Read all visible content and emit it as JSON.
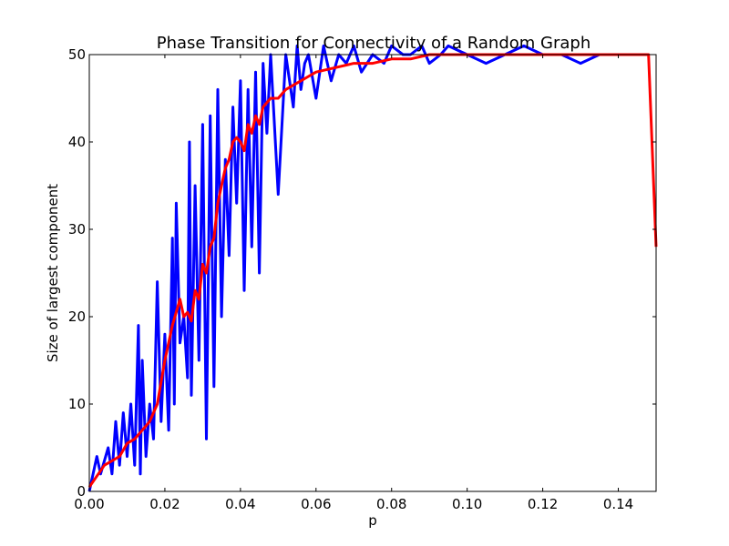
{
  "chart_data": {
    "type": "line",
    "title": "Phase Transition for Connectivity of a Random Graph",
    "xlabel": "p",
    "ylabel": "Size of largest component",
    "xlim": [
      0.0,
      0.15
    ],
    "ylim": [
      0,
      50
    ],
    "xticks": [
      "0.00",
      "0.02",
      "0.04",
      "0.06",
      "0.08",
      "0.10",
      "0.12",
      "0.14"
    ],
    "yticks": [
      "0",
      "10",
      "20",
      "30",
      "40",
      "50"
    ],
    "grid": false,
    "legend": "none",
    "series": [
      {
        "color": "#0000ff",
        "x": [
          0.0,
          0.002,
          0.003,
          0.005,
          0.006,
          0.007,
          0.008,
          0.009,
          0.01,
          0.011,
          0.012,
          0.013,
          0.0135,
          0.014,
          0.015,
          0.016,
          0.017,
          0.018,
          0.019,
          0.02,
          0.021,
          0.022,
          0.0225,
          0.023,
          0.024,
          0.025,
          0.026,
          0.0265,
          0.027,
          0.028,
          0.029,
          0.03,
          0.031,
          0.032,
          0.033,
          0.034,
          0.035,
          0.036,
          0.037,
          0.038,
          0.039,
          0.04,
          0.041,
          0.042,
          0.043,
          0.044,
          0.045,
          0.046,
          0.047,
          0.048,
          0.05,
          0.052,
          0.054,
          0.055,
          0.056,
          0.057,
          0.058,
          0.06,
          0.062,
          0.064,
          0.066,
          0.068,
          0.07,
          0.072,
          0.075,
          0.078,
          0.08,
          0.083,
          0.085,
          0.088,
          0.09,
          0.093,
          0.095,
          0.1,
          0.105,
          0.11,
          0.115,
          0.12,
          0.125,
          0.13,
          0.135,
          0.14,
          0.145,
          0.148
        ],
        "y": [
          0,
          4,
          2,
          5,
          2,
          8,
          3,
          9,
          4,
          10,
          3,
          19,
          2,
          15,
          4,
          10,
          6,
          24,
          8,
          18,
          7,
          29,
          10,
          33,
          17,
          20,
          13,
          40,
          11,
          35,
          15,
          42,
          6,
          43,
          12,
          46,
          20,
          38,
          27,
          44,
          33,
          47,
          23,
          46,
          28,
          48,
          25,
          49,
          41,
          50,
          34,
          50,
          44,
          51,
          46,
          49,
          50,
          45,
          51,
          47,
          50,
          49,
          51,
          48,
          50,
          49,
          51,
          50,
          50,
          51,
          49,
          50,
          51,
          50,
          49,
          50,
          51,
          50,
          50,
          49,
          50,
          50,
          50,
          50
        ]
      },
      {
        "color": "#ff0000",
        "x": [
          0.0,
          0.004,
          0.008,
          0.01,
          0.012,
          0.014,
          0.016,
          0.018,
          0.02,
          0.022,
          0.024,
          0.025,
          0.026,
          0.027,
          0.028,
          0.029,
          0.03,
          0.031,
          0.032,
          0.033,
          0.034,
          0.035,
          0.036,
          0.037,
          0.038,
          0.039,
          0.04,
          0.041,
          0.042,
          0.043,
          0.044,
          0.045,
          0.046,
          0.047,
          0.048,
          0.05,
          0.052,
          0.054,
          0.056,
          0.058,
          0.06,
          0.065,
          0.07,
          0.075,
          0.08,
          0.085,
          0.09,
          0.095,
          0.1,
          0.11,
          0.12,
          0.13,
          0.14,
          0.148,
          0.15
        ],
        "y": [
          0.5,
          3,
          4,
          5.5,
          6,
          7,
          8,
          10,
          15,
          19,
          22,
          20,
          20.5,
          19.5,
          23,
          22,
          26,
          25,
          28,
          29,
          33,
          35,
          37,
          38,
          40,
          40.5,
          40,
          39,
          42,
          41,
          43,
          42,
          44,
          44.5,
          45,
          45,
          46,
          46.5,
          47,
          47.5,
          48,
          48.5,
          49,
          49,
          49.5,
          49.5,
          50,
          50,
          50,
          50,
          50,
          50,
          50,
          50,
          28
        ]
      }
    ]
  }
}
